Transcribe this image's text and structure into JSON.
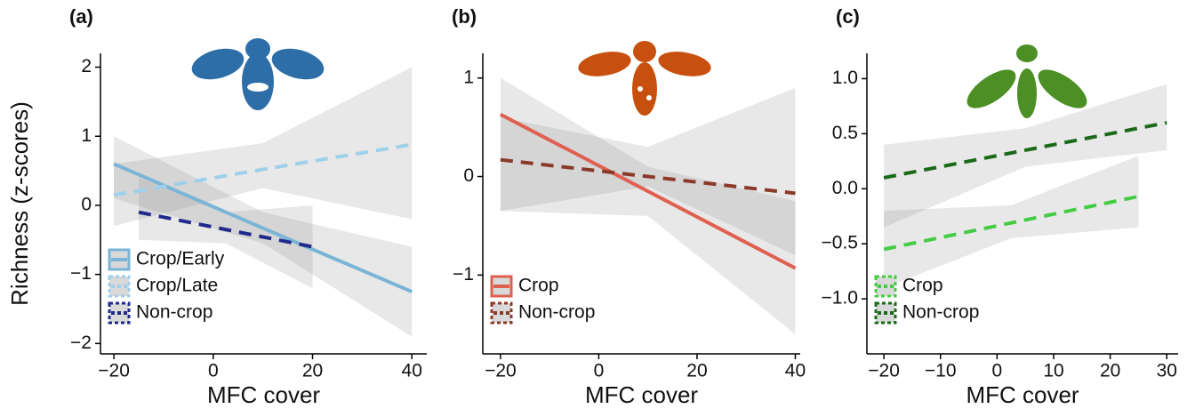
{
  "chart_data": [
    {
      "type": "line",
      "panel_label": "(a)",
      "xlabel": "MFC cover",
      "ylabel": "Richness (z-scores)",
      "xlim": [
        -22.7,
        43
      ],
      "ylim": [
        -2.15,
        2.2
      ],
      "xticks": [
        {
          "value": -20,
          "label": "−20"
        },
        0,
        20,
        40
      ],
      "yticks": [
        {
          "value": -2,
          "label": "−2"
        },
        {
          "value": -1,
          "label": "−1"
        },
        0,
        1,
        2
      ],
      "legend": "bottom-left",
      "series": [
        {
          "name": "Crop/Early",
          "color": "#7ab4d6",
          "dash": false,
          "x": [
            -20,
            10,
            40
          ],
          "values": [
            0.6,
            -0.33,
            -1.25
          ],
          "lower": [
            0.1,
            -0.55,
            -1.9
          ],
          "upper": [
            1.0,
            -0.1,
            -0.6
          ]
        },
        {
          "name": "Crop/Late",
          "color": "#9fd0ea",
          "dash": true,
          "x": [
            -20,
            10,
            40
          ],
          "values": [
            0.15,
            0.52,
            0.88
          ],
          "lower": [
            -0.3,
            0.25,
            -0.2
          ],
          "upper": [
            0.6,
            0.9,
            2.0
          ]
        },
        {
          "name": "Non-crop",
          "color": "#1f2a8a",
          "dash": true,
          "x": [
            -15,
            2.5,
            20
          ],
          "values": [
            -0.1,
            -0.35,
            -0.6
          ],
          "lower": [
            -0.5,
            -0.55,
            -1.2
          ],
          "upper": [
            0.4,
            -0.1,
            0.0
          ]
        }
      ]
    },
    {
      "type": "line",
      "panel_label": "(b)",
      "xlabel": "MFC cover",
      "xlim": [
        -23.6,
        41
      ],
      "ylim": [
        -1.8,
        1.25
      ],
      "xticks": [
        {
          "value": -20,
          "label": "−20"
        },
        0,
        20,
        40
      ],
      "yticks": [
        {
          "value": -1,
          "label": "−1"
        },
        0,
        1
      ],
      "legend": "bottom-left",
      "series": [
        {
          "name": "Crop",
          "color": "#e06050",
          "dash": false,
          "x": [
            -20,
            10,
            40
          ],
          "values": [
            0.63,
            -0.15,
            -0.93
          ],
          "lower": [
            -0.35,
            -0.4,
            -1.6
          ],
          "upper": [
            1.0,
            0.1,
            -0.25
          ]
        },
        {
          "name": "Non-crop",
          "color": "#8b3a2a",
          "dash": true,
          "x": [
            -20,
            10,
            40
          ],
          "values": [
            0.17,
            0.0,
            -0.17
          ],
          "lower": [
            -0.35,
            -0.1,
            -0.8
          ],
          "upper": [
            0.6,
            0.3,
            0.9
          ]
        }
      ]
    },
    {
      "type": "line",
      "panel_label": "(c)",
      "xlabel": "MFC cover",
      "xlim": [
        -23,
        32
      ],
      "ylim": [
        -1.5,
        1.23
      ],
      "xticks": [
        {
          "value": -20,
          "label": "−20"
        },
        {
          "value": -10,
          "label": "−10"
        },
        0,
        10,
        20,
        30
      ],
      "yticks": [
        {
          "value": -1,
          "label": "−1.0"
        },
        {
          "value": -0.5,
          "label": "−0.5"
        },
        {
          "value": 0,
          "label": "0.0"
        },
        0.5,
        {
          "value": 1,
          "label": "1.0"
        }
      ],
      "legend": "bottom-left",
      "series": [
        {
          "name": "Crop",
          "color": "#44cc44",
          "dash": true,
          "x": [
            -20,
            2.5,
            25
          ],
          "values": [
            -0.55,
            -0.31,
            -0.07
          ],
          "lower": [
            -0.9,
            -0.45,
            -0.35
          ],
          "upper": [
            -0.2,
            -0.15,
            0.3
          ]
        },
        {
          "name": "Non-crop",
          "color": "#1a6a1a",
          "dash": true,
          "x": [
            -20,
            5,
            30
          ],
          "values": [
            0.1,
            0.35,
            0.6
          ],
          "lower": [
            -0.35,
            0.2,
            0.35
          ],
          "upper": [
            0.4,
            0.55,
            0.95
          ]
        }
      ]
    }
  ]
}
